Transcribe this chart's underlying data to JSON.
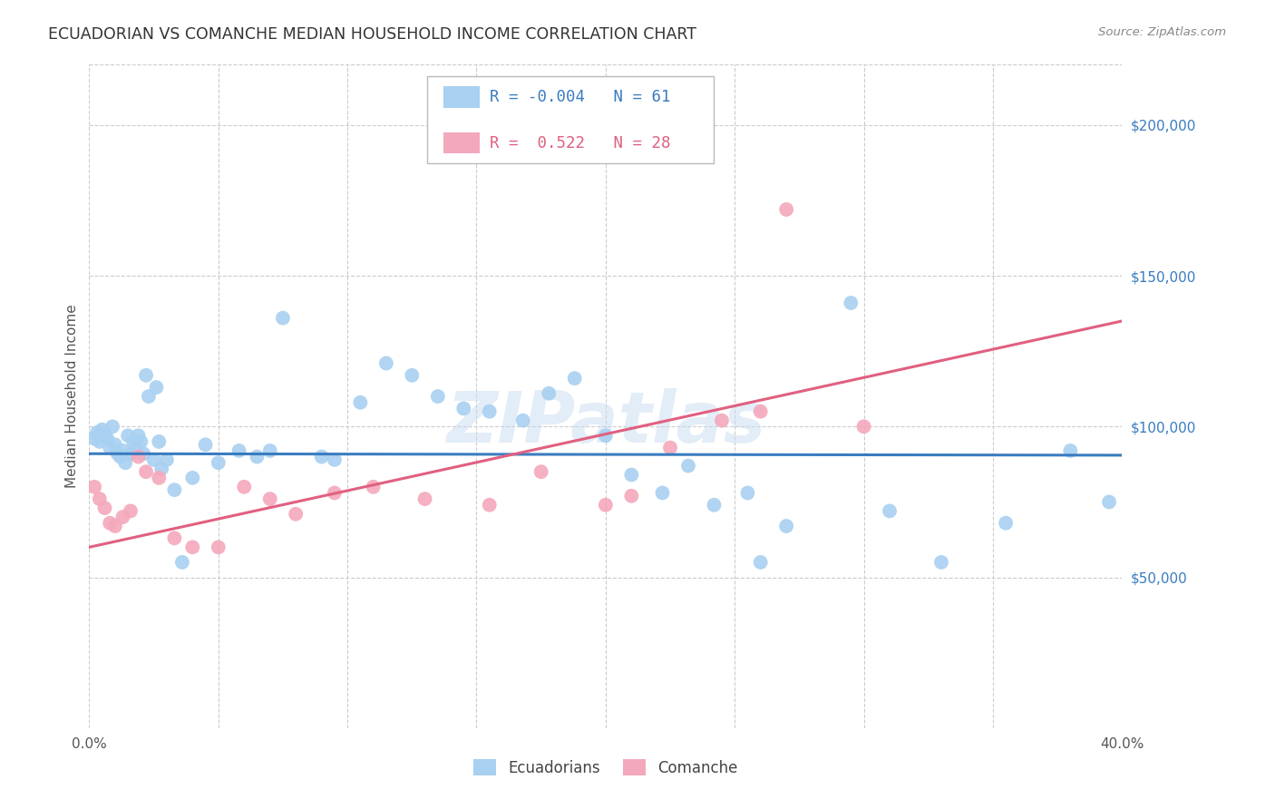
{
  "title": "ECUADORIAN VS COMANCHE MEDIAN HOUSEHOLD INCOME CORRELATION CHART",
  "source": "Source: ZipAtlas.com",
  "ylabel": "Median Household Income",
  "x_min": 0.0,
  "x_max": 0.4,
  "y_min": 0,
  "y_max": 220000,
  "x_ticks": [
    0.0,
    0.05,
    0.1,
    0.15,
    0.2,
    0.25,
    0.3,
    0.35,
    0.4
  ],
  "x_tick_labels": [
    "0.0%",
    "",
    "",
    "",
    "",
    "",
    "",
    "",
    "40.0%"
  ],
  "y_tick_labels_right": [
    "$50,000",
    "$100,000",
    "$150,000",
    "$200,000"
  ],
  "y_tick_values_right": [
    50000,
    100000,
    150000,
    200000
  ],
  "watermark": "ZIPatlas",
  "legend_R": [
    "-0.004",
    "0.522"
  ],
  "legend_N": [
    "61",
    "28"
  ],
  "blue_color": "#A8D0F0",
  "pink_color": "#F4A8BC",
  "blue_line_color": "#3A7CC0",
  "pink_line_color": "#E06080",
  "blue_line_y0": 91000,
  "blue_line_y1": 90500,
  "pink_line_y0": 60000,
  "pink_line_y1": 135000,
  "blue_scatter_x": [
    0.002,
    0.003,
    0.004,
    0.005,
    0.006,
    0.007,
    0.008,
    0.009,
    0.01,
    0.011,
    0.012,
    0.013,
    0.014,
    0.015,
    0.016,
    0.017,
    0.018,
    0.019,
    0.02,
    0.021,
    0.022,
    0.023,
    0.025,
    0.026,
    0.027,
    0.028,
    0.03,
    0.033,
    0.036,
    0.04,
    0.045,
    0.05,
    0.058,
    0.065,
    0.07,
    0.075,
    0.09,
    0.095,
    0.105,
    0.115,
    0.125,
    0.135,
    0.145,
    0.155,
    0.168,
    0.178,
    0.188,
    0.2,
    0.21,
    0.222,
    0.232,
    0.242,
    0.255,
    0.26,
    0.27,
    0.295,
    0.31,
    0.33,
    0.355,
    0.38,
    0.395
  ],
  "blue_scatter_y": [
    96000,
    98000,
    95000,
    99000,
    97000,
    96000,
    93000,
    100000,
    94000,
    91000,
    90000,
    92000,
    88000,
    97000,
    91000,
    95000,
    93000,
    97000,
    95000,
    91000,
    117000,
    110000,
    89000,
    113000,
    95000,
    86000,
    89000,
    79000,
    55000,
    83000,
    94000,
    88000,
    92000,
    90000,
    92000,
    136000,
    90000,
    89000,
    108000,
    121000,
    117000,
    110000,
    106000,
    105000,
    102000,
    111000,
    116000,
    97000,
    84000,
    78000,
    87000,
    74000,
    78000,
    55000,
    67000,
    141000,
    72000,
    55000,
    68000,
    92000,
    75000
  ],
  "pink_scatter_x": [
    0.002,
    0.004,
    0.006,
    0.008,
    0.01,
    0.013,
    0.016,
    0.019,
    0.022,
    0.027,
    0.033,
    0.04,
    0.05,
    0.06,
    0.07,
    0.08,
    0.095,
    0.11,
    0.13,
    0.155,
    0.175,
    0.2,
    0.21,
    0.225,
    0.245,
    0.26,
    0.3,
    0.27
  ],
  "pink_scatter_y": [
    80000,
    76000,
    73000,
    68000,
    67000,
    70000,
    72000,
    90000,
    85000,
    83000,
    63000,
    60000,
    60000,
    80000,
    76000,
    71000,
    78000,
    80000,
    76000,
    74000,
    85000,
    74000,
    77000,
    93000,
    102000,
    105000,
    100000,
    172000
  ]
}
